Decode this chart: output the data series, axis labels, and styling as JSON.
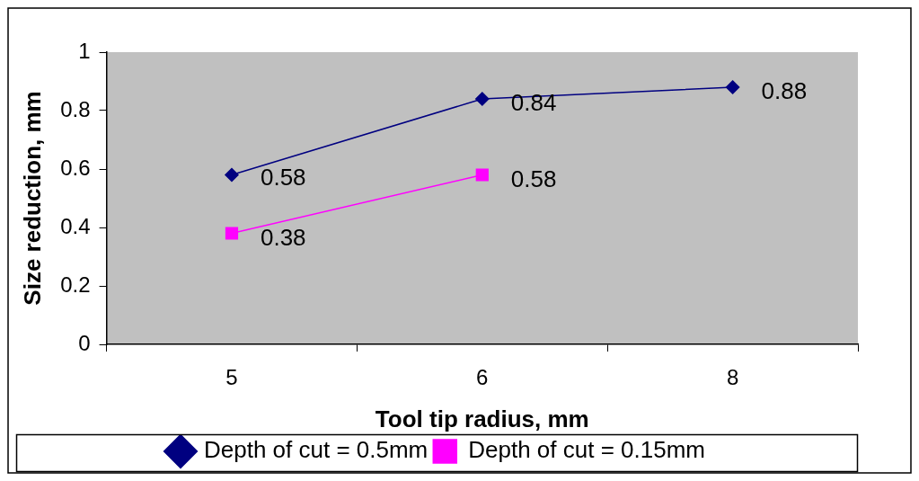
{
  "chart_data": {
    "type": "line",
    "xlabel": "Tool tip radius, mm",
    "ylabel": "Size reduction, mm",
    "categories": [
      "5",
      "6",
      "8"
    ],
    "series": [
      {
        "name": "Depth of cut = 0.5mm",
        "color": "#000080",
        "marker": "diamond",
        "values": [
          0.58,
          0.84,
          0.88
        ]
      },
      {
        "name": "Depth of cut = 0.15mm",
        "color": "#ff00ff",
        "marker": "square",
        "values": [
          0.38,
          0.58,
          null
        ]
      }
    ],
    "ylim": [
      0,
      1
    ],
    "yticks": [
      0,
      0.2,
      0.4,
      0.6,
      0.8,
      1
    ],
    "grid": false,
    "legend": "bottom",
    "data_labels": true
  }
}
